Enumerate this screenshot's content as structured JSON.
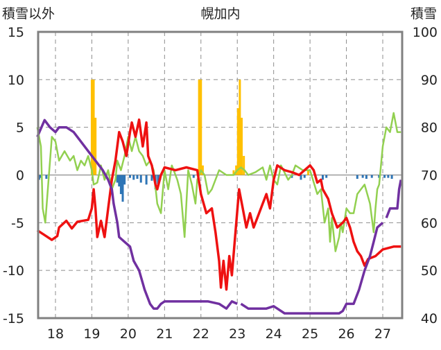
{
  "chart_data": {
    "type": "line",
    "title": "幌加内",
    "ylabel_left": "積雪以外",
    "ylabel_right": "積雪",
    "ylim_left": [
      -15,
      15
    ],
    "ylim_right": [
      40,
      100
    ],
    "yticks_left": [
      15,
      10,
      5,
      0,
      -5,
      -10,
      -15
    ],
    "yticks_right": [
      100,
      90,
      80,
      70,
      60,
      50,
      40
    ],
    "xlim": [
      17.5,
      27.5
    ],
    "x_categories": [
      "18",
      "19",
      "20",
      "21",
      "22",
      "23",
      "24",
      "25",
      "26",
      "27"
    ],
    "grid": "dashed-vertical-and-horizontal",
    "colors": {
      "temperature": "#ee1111",
      "snow_depth": "#7030a0",
      "green_series": "#92d050",
      "precip": "#ffc000",
      "negative_bars": "#2e75b6",
      "frame": "#808080"
    },
    "series": [
      {
        "name": "red",
        "axis": "left",
        "points": [
          [
            17.5,
            -5.8
          ],
          [
            17.7,
            -6.3
          ],
          [
            17.9,
            -6.8
          ],
          [
            18.05,
            -6.4
          ],
          [
            18.1,
            -5.5
          ],
          [
            18.3,
            -4.8
          ],
          [
            18.45,
            -5.6
          ],
          [
            18.6,
            -4.9
          ],
          [
            18.9,
            -4.7
          ],
          [
            19.0,
            -3.5
          ],
          [
            19.05,
            -1.5
          ],
          [
            19.1,
            -3.5
          ],
          [
            19.15,
            -6.5
          ],
          [
            19.25,
            -4.8
          ],
          [
            19.35,
            -6.5
          ],
          [
            19.45,
            -3.5
          ],
          [
            19.55,
            -0.5
          ],
          [
            19.65,
            1.5
          ],
          [
            19.75,
            4.5
          ],
          [
            19.85,
            3.5
          ],
          [
            19.95,
            2.0
          ],
          [
            20.05,
            4.5
          ],
          [
            20.1,
            5.5
          ],
          [
            20.2,
            4.0
          ],
          [
            20.3,
            5.8
          ],
          [
            20.4,
            3.0
          ],
          [
            20.5,
            5.5
          ],
          [
            20.55,
            2.0
          ],
          [
            20.65,
            1.0
          ],
          [
            20.75,
            -1.0
          ],
          [
            20.8,
            -1.5
          ],
          [
            20.9,
            0.0
          ],
          [
            21.0,
            0.8
          ],
          [
            21.3,
            0.5
          ],
          [
            21.6,
            0.8
          ],
          [
            21.9,
            0.5
          ],
          [
            22.0,
            -2.0
          ],
          [
            22.15,
            -4.0
          ],
          [
            22.3,
            -3.5
          ],
          [
            22.4,
            -6.0
          ],
          [
            22.5,
            -9.0
          ],
          [
            22.55,
            -11.8
          ],
          [
            22.62,
            -9.0
          ],
          [
            22.7,
            -12.0
          ],
          [
            22.78,
            -8.5
          ],
          [
            22.85,
            -10.5
          ],
          [
            22.95,
            -6.0
          ],
          [
            23.05,
            -1.5
          ],
          [
            23.15,
            -3.5
          ],
          [
            23.25,
            -5.5
          ],
          [
            23.35,
            -4.0
          ],
          [
            23.45,
            -5.5
          ],
          [
            23.55,
            -4.5
          ],
          [
            23.7,
            -3.0
          ],
          [
            23.8,
            -2.0
          ],
          [
            23.9,
            -3.5
          ],
          [
            24.0,
            -0.5
          ],
          [
            24.1,
            1.0
          ],
          [
            24.3,
            0.5
          ],
          [
            24.5,
            0.3
          ],
          [
            24.7,
            0.0
          ],
          [
            24.85,
            0.5
          ],
          [
            25.0,
            1.0
          ],
          [
            25.1,
            0.5
          ],
          [
            25.2,
            -0.8
          ],
          [
            25.3,
            -0.5
          ],
          [
            25.35,
            -1.5
          ],
          [
            25.5,
            -2.5
          ],
          [
            25.6,
            -4.0
          ],
          [
            25.75,
            -5.5
          ],
          [
            25.9,
            -5.0
          ],
          [
            26.0,
            -4.5
          ],
          [
            26.1,
            -5.5
          ],
          [
            26.2,
            -7.0
          ],
          [
            26.3,
            -8.0
          ],
          [
            26.4,
            -8.5
          ],
          [
            26.5,
            -9.5
          ],
          [
            26.6,
            -8.8
          ],
          [
            26.8,
            -8.5
          ],
          [
            27.0,
            -7.8
          ],
          [
            27.3,
            -7.5
          ],
          [
            27.5,
            -7.5
          ]
        ]
      },
      {
        "name": "purple",
        "axis": "right",
        "segments": [
          [
            [
              17.5,
              78
            ],
            [
              17.7,
              81.5
            ],
            [
              17.85,
              80
            ],
            [
              18.0,
              79
            ],
            [
              18.1,
              80
            ],
            [
              18.3,
              80
            ],
            [
              18.5,
              79
            ],
            [
              18.7,
              77
            ],
            [
              18.9,
              75
            ],
            [
              19.1,
              73
            ],
            [
              19.3,
              71
            ],
            [
              19.45,
              69
            ],
            [
              19.55,
              67
            ],
            [
              19.6,
              64
            ],
            [
              19.7,
              60
            ],
            [
              19.75,
              57
            ],
            [
              19.9,
              56
            ],
            [
              20.05,
              55
            ],
            [
              20.15,
              52
            ],
            [
              20.3,
              50
            ],
            [
              20.45,
              46
            ],
            [
              20.6,
              43
            ],
            [
              20.7,
              42
            ],
            [
              20.8,
              42
            ],
            [
              20.9,
              43
            ],
            [
              21.0,
              43.5
            ],
            [
              21.3,
              43.5
            ],
            [
              21.6,
              43.5
            ],
            [
              21.9,
              43.5
            ],
            [
              22.2,
              43.5
            ],
            [
              22.5,
              43
            ],
            [
              22.7,
              42
            ],
            [
              22.85,
              43.5
            ],
            [
              23.0,
              43
            ]
          ],
          [
            [
              23.1,
              43
            ],
            [
              23.3,
              42
            ],
            [
              23.6,
              42
            ],
            [
              23.8,
              42
            ],
            [
              24.0,
              42.5
            ],
            [
              24.1,
              42
            ],
            [
              24.3,
              41
            ],
            [
              24.6,
              41
            ],
            [
              24.9,
              41
            ],
            [
              25.1,
              41
            ],
            [
              25.3,
              41
            ],
            [
              25.6,
              41
            ],
            [
              25.8,
              41
            ],
            [
              25.9,
              41.5
            ],
            [
              26.0,
              43
            ],
            [
              26.2,
              43
            ],
            [
              26.35,
              46
            ],
            [
              26.5,
              50
            ],
            [
              26.65,
              53
            ],
            [
              26.75,
              56
            ],
            [
              26.85,
              59
            ],
            [
              27.0,
              60
            ]
          ],
          [
            [
              27.1,
              61
            ],
            [
              27.2,
              63
            ],
            [
              27.4,
              63
            ],
            [
              27.45,
              67
            ],
            [
              27.5,
              69
            ]
          ]
        ]
      },
      {
        "name": "green",
        "axis": "left",
        "points": [
          [
            17.5,
            5.0
          ],
          [
            17.6,
            3.0
          ],
          [
            17.65,
            -3.5
          ],
          [
            17.72,
            -5.0
          ],
          [
            17.8,
            -1.0
          ],
          [
            17.9,
            4.0
          ],
          [
            18.0,
            3.5
          ],
          [
            18.1,
            1.5
          ],
          [
            18.25,
            2.5
          ],
          [
            18.4,
            1.5
          ],
          [
            18.5,
            2.0
          ],
          [
            18.6,
            0.5
          ],
          [
            18.7,
            1.5
          ],
          [
            18.8,
            1.0
          ],
          [
            18.9,
            2.0
          ],
          [
            19.0,
            0.5
          ],
          [
            19.05,
            -1.0
          ],
          [
            19.15,
            -0.8
          ],
          [
            19.25,
            1.0
          ],
          [
            19.35,
            -0.5
          ],
          [
            19.45,
            0.5
          ],
          [
            19.55,
            -1.5
          ],
          [
            19.65,
            -0.5
          ],
          [
            19.7,
            1.5
          ],
          [
            19.8,
            0.5
          ],
          [
            19.9,
            2.0
          ],
          [
            20.0,
            4.0
          ],
          [
            20.1,
            2.5
          ],
          [
            20.2,
            4.0
          ],
          [
            20.3,
            2.5
          ],
          [
            20.4,
            2.0
          ],
          [
            20.5,
            1.0
          ],
          [
            20.6,
            1.5
          ],
          [
            20.7,
            0.5
          ],
          [
            20.8,
            -3.0
          ],
          [
            20.9,
            -4.0
          ],
          [
            21.0,
            0.5
          ],
          [
            21.1,
            -1.5
          ],
          [
            21.2,
            1.0
          ],
          [
            21.35,
            -0.5
          ],
          [
            21.45,
            -2.0
          ],
          [
            21.55,
            -6.5
          ],
          [
            21.65,
            0.5
          ],
          [
            21.75,
            -1.0
          ],
          [
            21.85,
            -3.0
          ],
          [
            21.9,
            -0.5
          ],
          [
            22.0,
            0.5
          ],
          [
            22.1,
            0.0
          ],
          [
            22.2,
            -2.0
          ],
          [
            22.3,
            -1.5
          ],
          [
            22.5,
            0.5
          ],
          [
            22.7,
            0.0
          ],
          [
            22.9,
            0.0
          ],
          [
            23.0,
            0.5
          ],
          [
            23.1,
            0.8
          ],
          [
            23.2,
            0.5
          ],
          [
            23.3,
            0.0
          ],
          [
            23.5,
            0.3
          ],
          [
            23.7,
            0.8
          ],
          [
            23.8,
            -0.5
          ],
          [
            23.9,
            1.0
          ],
          [
            24.0,
            -0.5
          ],
          [
            24.1,
            -1.0
          ],
          [
            24.2,
            1.0
          ],
          [
            24.4,
            -0.5
          ],
          [
            24.5,
            0.0
          ],
          [
            24.6,
            1.0
          ],
          [
            24.8,
            0.5
          ],
          [
            25.0,
            0.5
          ],
          [
            25.2,
            -2.0
          ],
          [
            25.3,
            -1.5
          ],
          [
            25.4,
            -5.0
          ],
          [
            25.5,
            -3.5
          ],
          [
            25.55,
            -7.0
          ],
          [
            25.6,
            -4.5
          ],
          [
            25.7,
            -8.0
          ],
          [
            25.8,
            -6.5
          ],
          [
            25.85,
            -5.0
          ],
          [
            25.9,
            -6.0
          ],
          [
            26.0,
            -3.5
          ],
          [
            26.1,
            -4.0
          ],
          [
            26.2,
            -4.0
          ],
          [
            26.3,
            -2.0
          ],
          [
            26.4,
            -1.5
          ],
          [
            26.5,
            -1.0
          ],
          [
            26.65,
            -3.0
          ],
          [
            26.75,
            -6.0
          ],
          [
            26.8,
            -3.5
          ],
          [
            26.85,
            -1.5
          ],
          [
            26.9,
            -1.0
          ],
          [
            27.0,
            3.0
          ],
          [
            27.1,
            5.0
          ],
          [
            27.2,
            4.5
          ],
          [
            27.3,
            6.5
          ],
          [
            27.35,
            5.5
          ],
          [
            27.4,
            4.5
          ],
          [
            27.5,
            4.5
          ]
        ]
      },
      {
        "name": "orange-bars",
        "axis": "left",
        "points": [
          [
            19.0,
            10.0
          ],
          [
            19.05,
            10.0
          ],
          [
            19.1,
            6.0
          ],
          [
            21.95,
            10.0
          ],
          [
            22.0,
            10.0
          ],
          [
            22.05,
            1.0
          ],
          [
            22.9,
            0.5
          ],
          [
            22.97,
            1.0
          ],
          [
            23.02,
            7.0
          ],
          [
            23.07,
            10.0
          ],
          [
            23.12,
            6.0
          ],
          [
            23.18,
            2.0
          ],
          [
            24.95,
            0.5
          ]
        ]
      },
      {
        "name": "blue-bars",
        "axis": "left",
        "points": [
          [
            17.55,
            -0.5
          ],
          [
            17.6,
            -0.3
          ],
          [
            17.75,
            -0.4
          ],
          [
            19.7,
            -0.8
          ],
          [
            19.75,
            -1.2
          ],
          [
            19.8,
            -2.0
          ],
          [
            19.85,
            -2.8
          ],
          [
            19.9,
            -1.0
          ],
          [
            20.05,
            -0.3
          ],
          [
            20.15,
            -0.5
          ],
          [
            20.25,
            -0.4
          ],
          [
            20.35,
            -0.8
          ],
          [
            20.5,
            -1.0
          ],
          [
            20.65,
            -0.6
          ],
          [
            20.75,
            -1.5
          ],
          [
            20.82,
            -1.0
          ],
          [
            20.88,
            -0.5
          ],
          [
            21.8,
            -0.3
          ],
          [
            24.5,
            -0.3
          ],
          [
            24.75,
            -0.5
          ],
          [
            24.85,
            -0.3
          ],
          [
            25.35,
            -0.5
          ],
          [
            25.45,
            -0.3
          ],
          [
            26.3,
            -0.4
          ],
          [
            26.45,
            -0.3
          ],
          [
            26.55,
            -0.4
          ],
          [
            26.7,
            -0.3
          ],
          [
            26.9,
            -0.3
          ],
          [
            27.05,
            -0.3
          ],
          [
            27.15,
            -0.3
          ],
          [
            27.25,
            -0.4
          ]
        ]
      }
    ]
  }
}
